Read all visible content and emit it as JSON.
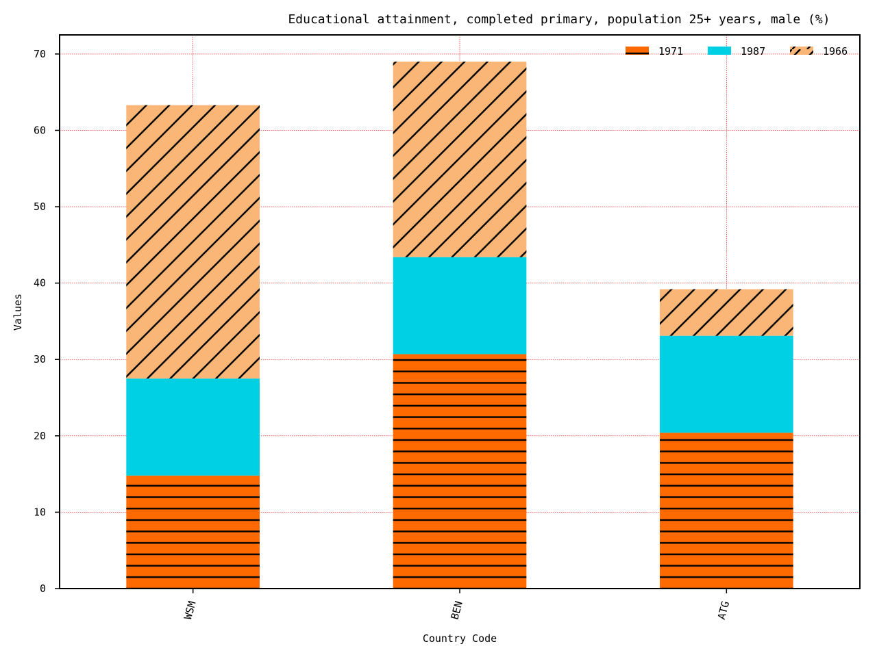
{
  "chart_data": {
    "type": "bar",
    "stacked": true,
    "title": "Educational attainment, completed primary, population 25+ years, male (%)",
    "xlabel": "Country Code",
    "ylabel": "Values",
    "categories": [
      "WSM",
      "BEN",
      "ATG"
    ],
    "series": [
      {
        "name": "1971",
        "values": [
          14.8,
          30.7,
          20.4
        ],
        "color": "#ff6a00",
        "hatch": "horizontal"
      },
      {
        "name": "1987",
        "values": [
          12.7,
          12.7,
          12.7
        ],
        "color": "#00d0e4",
        "hatch": "none"
      },
      {
        "name": "1966",
        "values": [
          35.8,
          25.6,
          6.1
        ],
        "color": "#fab676",
        "hatch": "diagonal"
      }
    ],
    "ylim": [
      0,
      72.5
    ],
    "yticks": [
      0,
      10,
      20,
      30,
      40,
      50,
      60,
      70
    ],
    "grid": true,
    "grid_color": "#ff0000",
    "legend_position": "top-right"
  }
}
